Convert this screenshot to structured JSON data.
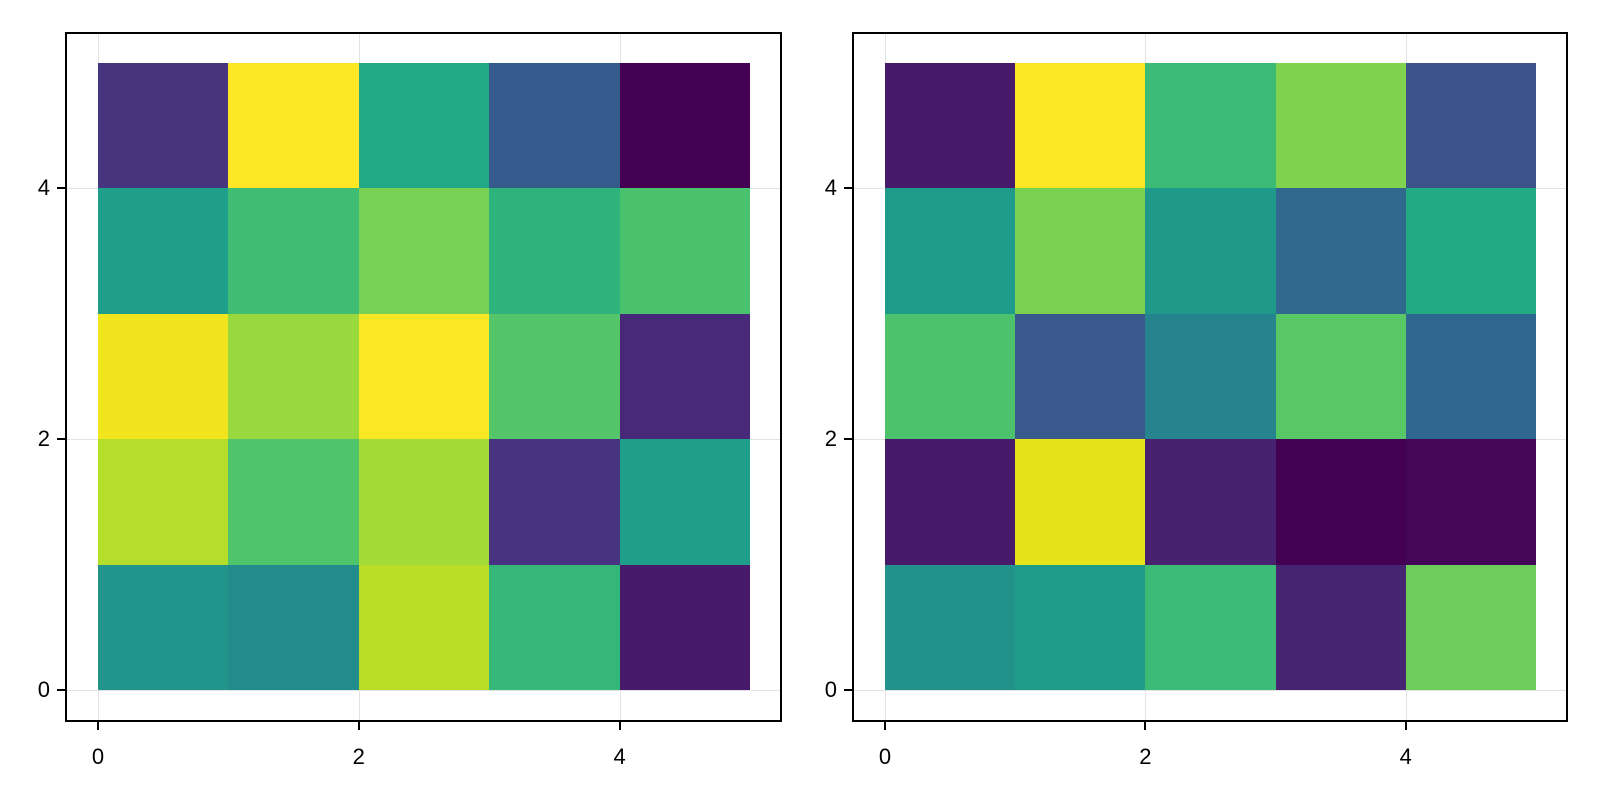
{
  "chart_data": [
    {
      "type": "heatmap",
      "title": "",
      "xlabel": "",
      "ylabel": "",
      "colormap": "viridis",
      "xlim": [
        -0.25,
        5.25
      ],
      "ylim": [
        -0.25,
        5.25
      ],
      "x_ticks": [
        0,
        2,
        4
      ],
      "y_ticks": [
        0,
        2,
        4
      ],
      "x_tick_labels": [
        "0",
        "2",
        "4"
      ],
      "y_tick_labels": [
        "0",
        "2",
        "4"
      ],
      "grid": true,
      "x_edges": [
        0,
        1,
        2,
        3,
        4,
        5
      ],
      "y_edges": [
        0,
        1,
        2,
        3,
        4,
        5
      ],
      "rows_bottom_to_top": [
        [
          0.51,
          0.48,
          0.9,
          0.66,
          0.06
        ],
        [
          0.89,
          0.72,
          0.87,
          0.13,
          0.55
        ],
        [
          0.98,
          0.85,
          0.99,
          0.73,
          0.11
        ],
        [
          0.55,
          0.69,
          0.8,
          0.64,
          0.71
        ],
        [
          0.13,
          1.0,
          0.6,
          0.28,
          0.0
        ]
      ],
      "colors_bottom_to_top": [
        [
          "#21958b",
          "#228c8d",
          "#bade28",
          "#35b779",
          "#471a6b"
        ],
        [
          "#b5de2b",
          "#4fc46a",
          "#a5db36",
          "#47337f",
          "#1f9e89"
        ],
        [
          "#f1e51d",
          "#9ad93d",
          "#fbe723",
          "#54c568",
          "#482979"
        ],
        [
          "#1f9e89",
          "#40bd72",
          "#77d153",
          "#2eb37c",
          "#4ac16d"
        ],
        [
          "#473580",
          "#fde725",
          "#22a884",
          "#375a8c",
          "#440154"
        ]
      ]
    },
    {
      "type": "heatmap",
      "title": "",
      "xlabel": "",
      "ylabel": "",
      "colormap": "viridis",
      "xlim": [
        -0.25,
        5.25
      ],
      "ylim": [
        -0.25,
        5.25
      ],
      "x_ticks": [
        0,
        2,
        4
      ],
      "y_ticks": [
        0,
        2,
        4
      ],
      "x_tick_labels": [
        "0",
        "2",
        "4"
      ],
      "y_tick_labels": [
        "0",
        "2",
        "4"
      ],
      "grid": true,
      "x_edges": [
        0,
        1,
        2,
        3,
        4,
        5
      ],
      "y_edges": [
        0,
        1,
        2,
        3,
        4,
        5
      ],
      "rows_bottom_to_top": [
        [
          0.5,
          0.54,
          0.68,
          0.1,
          0.78
        ],
        [
          0.06,
          0.95,
          0.08,
          0.0,
          0.02
        ],
        [
          0.71,
          0.28,
          0.45,
          0.74,
          0.35
        ],
        [
          0.54,
          0.8,
          0.54,
          0.35,
          0.6
        ],
        [
          0.06,
          1.0,
          0.68,
          0.81,
          0.25
        ]
      ],
      "colors_bottom_to_top": [
        [
          "#21938b",
          "#1f9b8a",
          "#3bbb75",
          "#472472",
          "#6ccd5a"
        ],
        [
          "#471a6b",
          "#e5e419",
          "#48226f",
          "#440154",
          "#450757"
        ],
        [
          "#4cc26c",
          "#39598c",
          "#25848e",
          "#58c765",
          "#30678e"
        ],
        [
          "#1f9b8a",
          "#7ad151",
          "#1f9a8a",
          "#30688e",
          "#22aa83"
        ],
        [
          "#471a6b",
          "#fde725",
          "#3bbb75",
          "#7fd34e",
          "#3d5289"
        ]
      ]
    }
  ],
  "panels": [
    {
      "x_tick_labels": [
        "0",
        "2",
        "4"
      ],
      "y_tick_labels": [
        "0",
        "2",
        "4"
      ]
    },
    {
      "x_tick_labels": [
        "0",
        "2",
        "4"
      ],
      "y_tick_labels": [
        "0",
        "2",
        "4"
      ]
    }
  ]
}
